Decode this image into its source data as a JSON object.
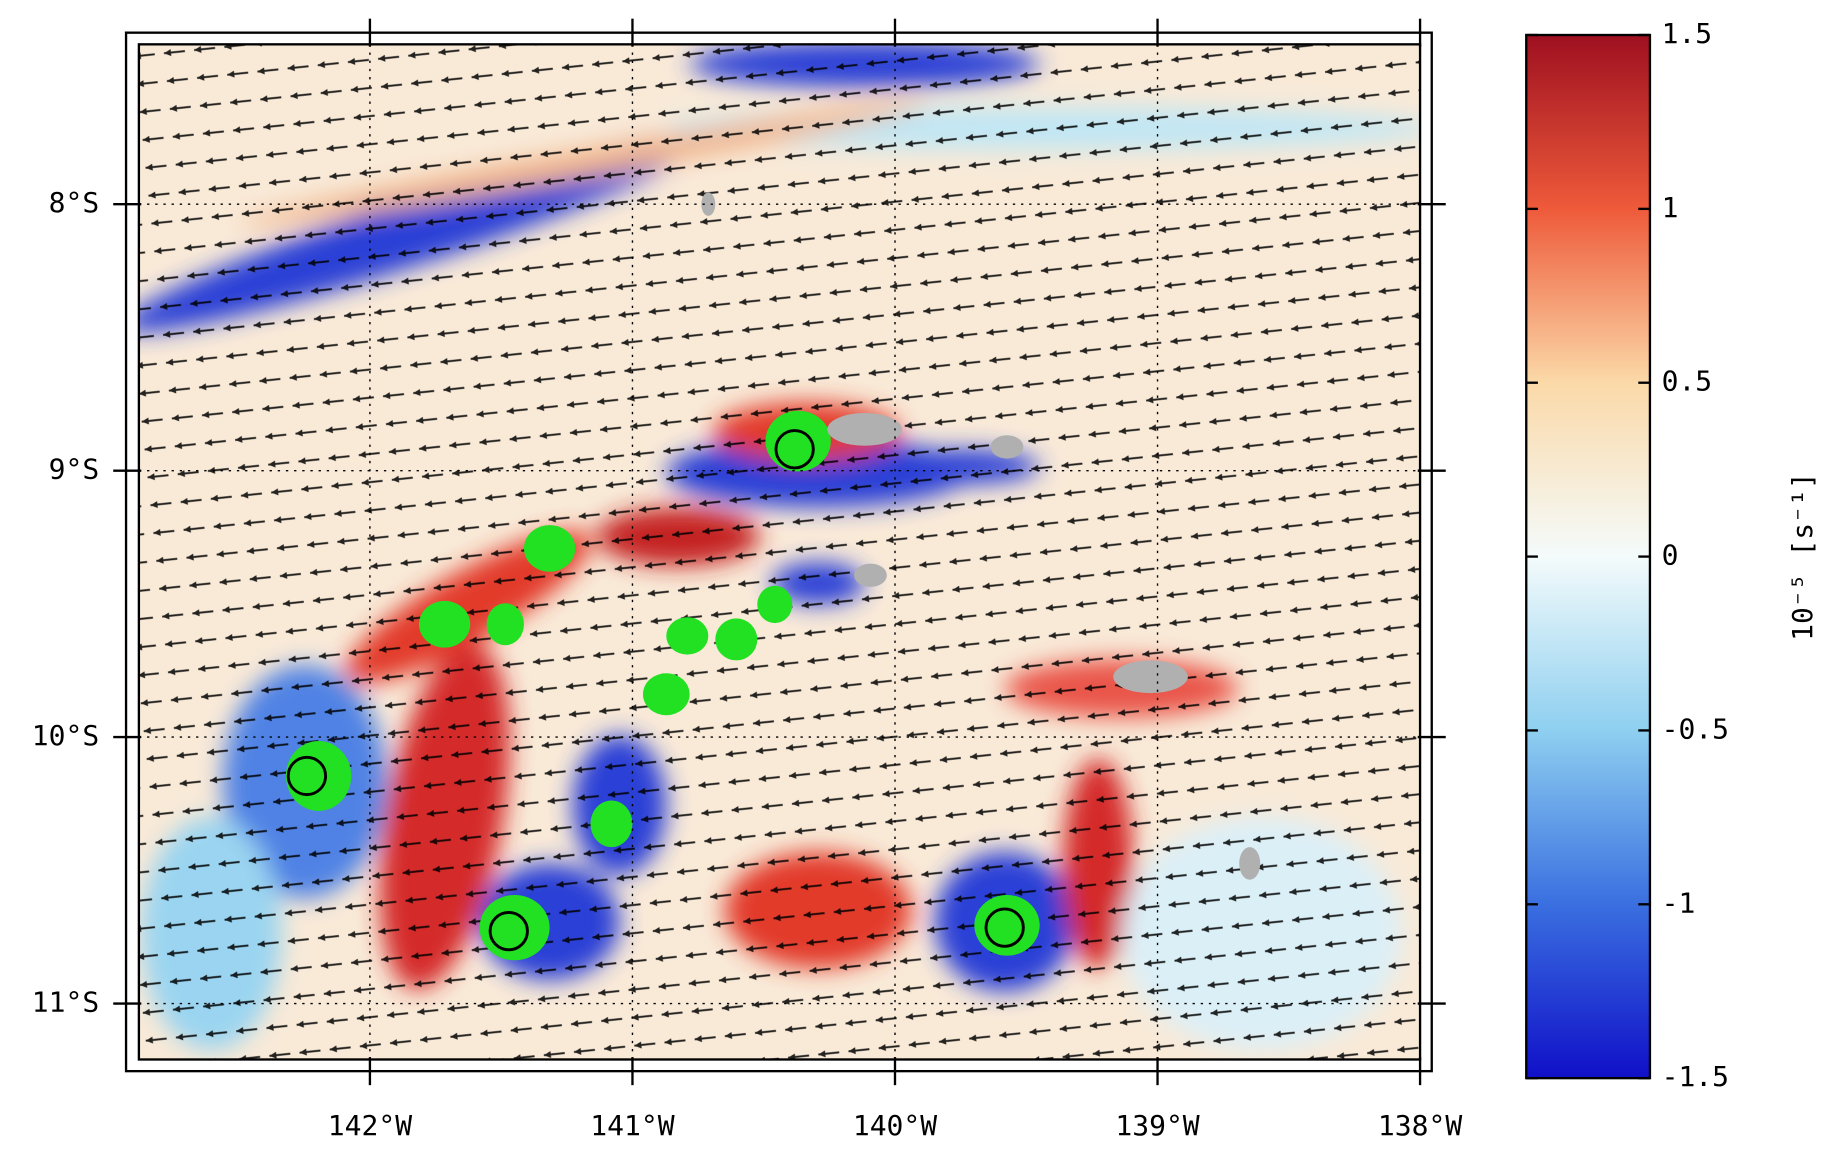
{
  "chart_data": {
    "type": "map",
    "xlim": [
      -142.88,
      -138
    ],
    "ylim": [
      -11.21,
      -7.4
    ],
    "xticks": [
      {
        "value": -142,
        "label": "142°W"
      },
      {
        "value": -141,
        "label": "141°W"
      },
      {
        "value": -140,
        "label": "140°W"
      },
      {
        "value": -139,
        "label": "139°W"
      },
      {
        "value": -138,
        "label": "138°W"
      }
    ],
    "yticks": [
      {
        "value": -8,
        "label": "8°S"
      },
      {
        "value": -9,
        "label": "9°S"
      },
      {
        "value": -10,
        "label": "10°S"
      },
      {
        "value": -11,
        "label": "11°S"
      }
    ],
    "grid": true,
    "colorbar": {
      "range": [
        -1.5,
        1.5
      ],
      "ticks": [
        1.5,
        1,
        0.5,
        0,
        -0.5,
        -1,
        -1.5
      ],
      "label": "10⁻⁵ [s⁻¹]",
      "colors": [
        "#1010c8",
        "#3a6fe0",
        "#8ecff0",
        "#f4fbfb",
        "#fbd9a8",
        "#ee5a3a",
        "#9e1020"
      ]
    }
  }
}
